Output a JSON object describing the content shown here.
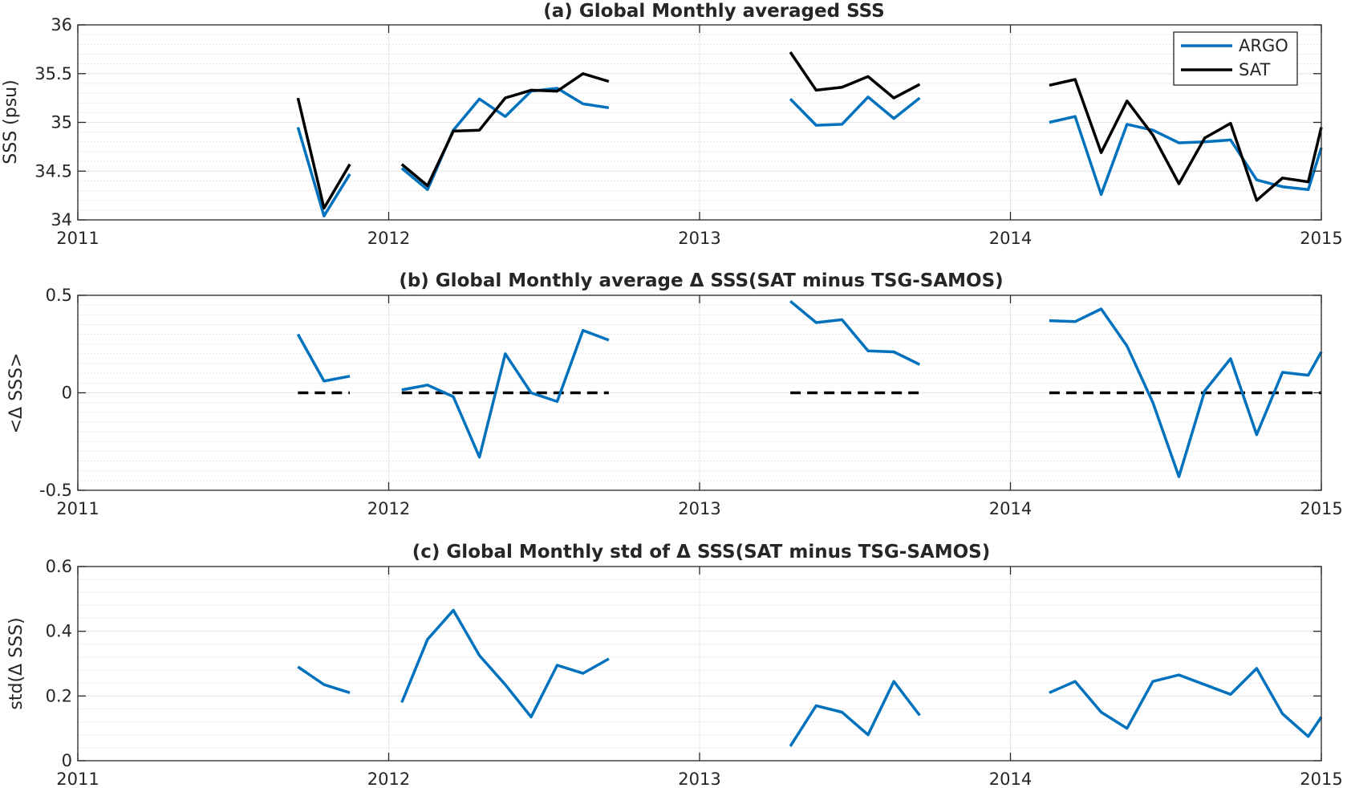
{
  "colors": {
    "argo": "#0072BD",
    "sat": "#000000",
    "zero_line": "#000000",
    "grid": "#e6e6e6",
    "axis": "#262626"
  },
  "chart_data": [
    {
      "type": "line",
      "title": "(a) Global Monthly averaged SSS",
      "ylabel": "SSS (psu)",
      "xlim": [
        2011,
        2015
      ],
      "ylim": [
        34,
        36
      ],
      "x_ticks": [
        2011,
        2012,
        2013,
        2014,
        2015
      ],
      "x_tick_labels": [
        "2011",
        "2012",
        "2013",
        "2014",
        "2015"
      ],
      "y_ticks": [
        34,
        34.5,
        35,
        35.5,
        36
      ],
      "y_tick_labels": [
        "34",
        "34.5",
        "35",
        "35.5",
        "36"
      ],
      "y_minor_step": 0.1,
      "grid": true,
      "legend": {
        "location": "top-right",
        "entries": [
          "ARGO",
          "SAT"
        ]
      },
      "series": [
        {
          "name": "ARGO",
          "color": "argo",
          "segments": [
            {
              "x": [
                2011.708,
                2011.792,
                2011.875
              ],
              "y": [
                34.95,
                34.04,
                34.47
              ]
            },
            {
              "x": [
                2012.042,
                2012.125,
                2012.208,
                2012.292,
                2012.375,
                2012.458,
                2012.542,
                2012.625,
                2012.708
              ],
              "y": [
                34.53,
                34.31,
                34.92,
                35.24,
                35.06,
                35.32,
                35.35,
                35.19,
                35.15
              ]
            },
            {
              "x": [
                2013.292,
                2013.375,
                2013.458,
                2013.542,
                2013.625,
                2013.708
              ],
              "y": [
                35.24,
                34.97,
                34.98,
                35.26,
                35.04,
                35.25
              ]
            },
            {
              "x": [
                2014.125,
                2014.208,
                2014.292,
                2014.375,
                2014.458,
                2014.542,
                2014.625,
                2014.708,
                2014.792,
                2014.875,
                2014.958,
                2015.0
              ],
              "y": [
                35.0,
                35.06,
                34.26,
                34.98,
                34.92,
                34.79,
                34.8,
                34.82,
                34.41,
                34.34,
                34.31,
                34.74
              ]
            }
          ]
        },
        {
          "name": "SAT",
          "color": "sat",
          "segments": [
            {
              "x": [
                2011.708,
                2011.792,
                2011.875
              ],
              "y": [
                35.25,
                34.12,
                34.57
              ]
            },
            {
              "x": [
                2012.042,
                2012.125,
                2012.208,
                2012.292,
                2012.375,
                2012.458,
                2012.542,
                2012.625,
                2012.708
              ],
              "y": [
                34.57,
                34.35,
                34.91,
                34.92,
                35.25,
                35.33,
                35.32,
                35.5,
                35.42
              ]
            },
            {
              "x": [
                2013.292,
                2013.375,
                2013.458,
                2013.542,
                2013.625,
                2013.708
              ],
              "y": [
                35.72,
                35.33,
                35.36,
                35.47,
                35.25,
                35.39
              ]
            },
            {
              "x": [
                2014.125,
                2014.208,
                2014.292,
                2014.375,
                2014.458,
                2014.542,
                2014.625,
                2014.708,
                2014.792,
                2014.875,
                2014.958,
                2015.0
              ],
              "y": [
                35.38,
                35.44,
                34.69,
                35.22,
                34.87,
                34.37,
                34.84,
                34.99,
                34.2,
                34.43,
                34.39,
                34.95
              ]
            }
          ]
        }
      ]
    },
    {
      "type": "line",
      "title": "(b) Global Monthly average Δ SSS(SAT minus TSG-SAMOS)",
      "ylabel": "<Δ SSS>",
      "xlim": [
        2011,
        2015
      ],
      "ylim": [
        -0.5,
        0.5
      ],
      "x_ticks": [
        2011,
        2012,
        2013,
        2014,
        2015
      ],
      "x_tick_labels": [
        "2011",
        "2012",
        "2013",
        "2014",
        "2015"
      ],
      "y_ticks": [
        -0.5,
        0,
        0.5
      ],
      "y_tick_labels": [
        "-0.5",
        "0",
        "0.5"
      ],
      "y_minor_step": 0.05,
      "grid": true,
      "series": [
        {
          "color": "argo",
          "segments": [
            {
              "x": [
                2011.708,
                2011.792,
                2011.875
              ],
              "y": [
                0.3,
                0.06,
                0.085
              ]
            },
            {
              "x": [
                2012.042,
                2012.125,
                2012.208,
                2012.292,
                2012.375,
                2012.458,
                2012.542,
                2012.625,
                2012.708
              ],
              "y": [
                0.015,
                0.04,
                -0.02,
                -0.33,
                0.2,
                0.0,
                -0.045,
                0.32,
                0.27
              ]
            },
            {
              "x": [
                2013.292,
                2013.375,
                2013.458,
                2013.542,
                2013.625,
                2013.708
              ],
              "y": [
                0.47,
                0.36,
                0.375,
                0.215,
                0.21,
                0.145
              ]
            },
            {
              "x": [
                2014.125,
                2014.208,
                2014.292,
                2014.375,
                2014.458,
                2014.542,
                2014.625,
                2014.708,
                2014.792,
                2014.875,
                2014.958,
                2015.0
              ],
              "y": [
                0.37,
                0.365,
                0.43,
                0.24,
                -0.05,
                -0.43,
                0.01,
                0.175,
                -0.215,
                0.105,
                0.09,
                0.21
              ]
            }
          ]
        }
      ],
      "reference_lines": [
        {
          "style": "dashed",
          "color": "zero_line",
          "y": 0,
          "segments": [
            [
              2011.708,
              2011.875
            ],
            [
              2012.042,
              2012.708
            ],
            [
              2013.292,
              2013.708
            ],
            [
              2014.125,
              2015.0
            ]
          ]
        }
      ]
    },
    {
      "type": "line",
      "title": "(c) Global Monthly std of Δ SSS(SAT minus TSG-SAMOS)",
      "ylabel": "std(Δ SSS)",
      "xlim": [
        2011,
        2015
      ],
      "ylim": [
        0,
        0.6
      ],
      "x_ticks": [
        2011,
        2012,
        2013,
        2014,
        2015
      ],
      "x_tick_labels": [
        "2011",
        "2012",
        "2013",
        "2014",
        "2015"
      ],
      "y_ticks": [
        0,
        0.2,
        0.4,
        0.6
      ],
      "y_tick_labels": [
        "0",
        "0.2",
        "0.4",
        "0.6"
      ],
      "y_minor_step": 0.04,
      "grid": true,
      "series": [
        {
          "color": "argo",
          "segments": [
            {
              "x": [
                2011.708,
                2011.792,
                2011.875
              ],
              "y": [
                0.29,
                0.235,
                0.21
              ]
            },
            {
              "x": [
                2012.042,
                2012.125,
                2012.208,
                2012.292,
                2012.375,
                2012.458,
                2012.542,
                2012.625,
                2012.708
              ],
              "y": [
                0.18,
                0.375,
                0.465,
                0.325,
                0.235,
                0.135,
                0.295,
                0.27,
                0.315
              ]
            },
            {
              "x": [
                2013.292,
                2013.375,
                2013.458,
                2013.542,
                2013.625,
                2013.708
              ],
              "y": [
                0.045,
                0.17,
                0.15,
                0.08,
                0.245,
                0.14
              ]
            },
            {
              "x": [
                2014.125,
                2014.208,
                2014.292,
                2014.375,
                2014.458,
                2014.542,
                2014.625,
                2014.708,
                2014.792,
                2014.875,
                2014.958,
                2015.0
              ],
              "y": [
                0.21,
                0.245,
                0.15,
                0.1,
                0.245,
                0.265,
                0.235,
                0.205,
                0.285,
                0.145,
                0.075,
                0.135
              ]
            }
          ]
        }
      ]
    }
  ]
}
